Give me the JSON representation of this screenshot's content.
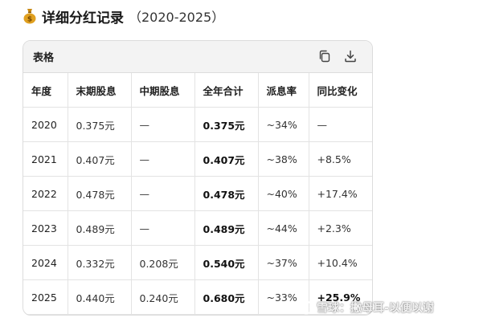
{
  "title": {
    "main": "详细分红记录",
    "years": "（2020-2025）",
    "icon": "money-bag-icon"
  },
  "card": {
    "label": "表格",
    "copy_icon": "copy-icon",
    "download_icon": "download-icon"
  },
  "table": {
    "headers": [
      "年度",
      "末期股息",
      "中期股息",
      "全年合计",
      "派息率",
      "同比变化"
    ],
    "rows": [
      [
        "2020",
        "0.375元",
        "—",
        "0.375元",
        "~34%",
        "—"
      ],
      [
        "2021",
        "0.407元",
        "—",
        "0.407元",
        "~38%",
        "+8.5%"
      ],
      [
        "2022",
        "0.478元",
        "—",
        "0.478元",
        "~40%",
        "+17.4%"
      ],
      [
        "2023",
        "0.489元",
        "—",
        "0.489元",
        "~44%",
        "+2.3%"
      ],
      [
        "2024",
        "0.332元",
        "0.208元",
        "0.540元",
        "~37%",
        "+10.4%"
      ],
      [
        "2025",
        "0.440元",
        "0.240元",
        "0.680元",
        "~33%",
        "+25.9%"
      ]
    ]
  },
  "watermark": {
    "text": "雪球：撇母耳-以便以谢"
  },
  "colors": {
    "header_bg": "#f3f3f3",
    "border": "#dcdcdc",
    "grid": "#e3e3e3",
    "bag": "#e0a020"
  }
}
